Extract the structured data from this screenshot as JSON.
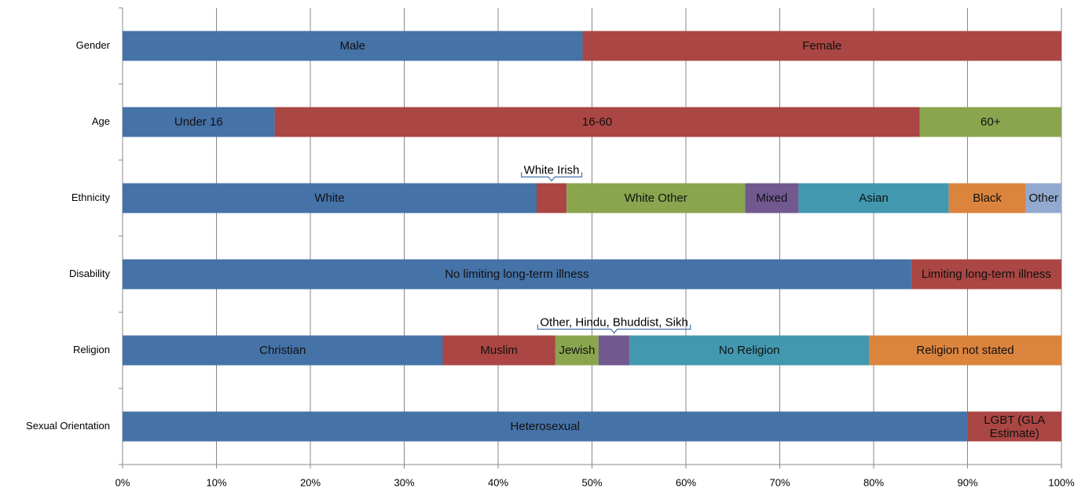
{
  "chart_data": {
    "type": "stacked_bar_horizontal",
    "rows": [
      {
        "label": "Gender",
        "segments": [
          {
            "name": "Male",
            "value": 49,
            "color": "#4572a7"
          },
          {
            "name": "Female",
            "value": 51,
            "color": "#aa4643"
          }
        ]
      },
      {
        "label": "Age",
        "segments": [
          {
            "name": "Under 16",
            "value": 16.2,
            "color": "#4572a7"
          },
          {
            "name": "16-60",
            "value": 68.7,
            "color": "#aa4643"
          },
          {
            "name": "60+",
            "value": 15.1,
            "color": "#89a54e"
          }
        ]
      },
      {
        "label": "Ethnicity",
        "segments": [
          {
            "name": "White",
            "value": 44.1,
            "color": "#4572a7"
          },
          {
            "name": "White Irish",
            "value": 3.2,
            "color": "#aa4643",
            "label_above": true
          },
          {
            "name": "White Other",
            "value": 19,
            "color": "#89a54e"
          },
          {
            "name": "Mixed",
            "value": 5.7,
            "color": "#71588f"
          },
          {
            "name": "Asian",
            "value": 16,
            "color": "#4198af"
          },
          {
            "name": "Black",
            "value": 8.2,
            "color": "#db843d"
          },
          {
            "name": "Other",
            "value": 3.8,
            "color": "#93a9cf"
          }
        ]
      },
      {
        "label": "Disability",
        "segments": [
          {
            "name": "No limiting long-term illness",
            "value": 84,
            "color": "#4572a7"
          },
          {
            "name": "Limiting long-term illness",
            "value": 16,
            "color": "#aa4643"
          }
        ]
      },
      {
        "label": "Religion",
        "segments": [
          {
            "name": "Christian",
            "value": 34.1,
            "color": "#4572a7"
          },
          {
            "name": "Muslim",
            "value": 12,
            "color": "#aa4643"
          },
          {
            "name": "Jewish",
            "value": 4.6,
            "color": "#89a54e"
          },
          {
            "name": "Other, Hindu, Bhuddist, Sikh",
            "value": 3.3,
            "color": "#71588f",
            "label_above": true
          },
          {
            "name": "No Religion",
            "value": 25.5,
            "color": "#4198af"
          },
          {
            "name": "Religion not stated",
            "value": 20.5,
            "color": "#db843d"
          }
        ]
      },
      {
        "label": "Sexual Orientation",
        "segments": [
          {
            "name": "Heterosexual",
            "value": 90,
            "color": "#4572a7"
          },
          {
            "name": "LGBT (GLA Estimate)",
            "value": 10,
            "color": "#aa4643"
          }
        ]
      }
    ],
    "xlim": [
      0,
      100
    ],
    "xticks": [
      {
        "value": 0,
        "label": "0%"
      },
      {
        "value": 10,
        "label": "10%"
      },
      {
        "value": 20,
        "label": "20%"
      },
      {
        "value": 30,
        "label": "30%"
      },
      {
        "value": 40,
        "label": "40%"
      },
      {
        "value": 50,
        "label": "50%"
      },
      {
        "value": 60,
        "label": "60%"
      },
      {
        "value": 70,
        "label": "70%"
      },
      {
        "value": 80,
        "label": "80%"
      },
      {
        "value": 90,
        "label": "90%"
      },
      {
        "value": 100,
        "label": "100%"
      }
    ],
    "grid": true
  }
}
